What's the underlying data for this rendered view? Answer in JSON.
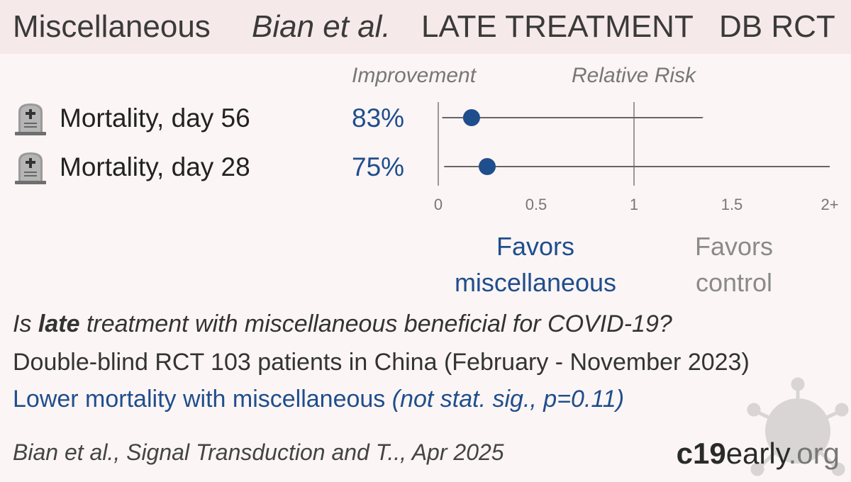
{
  "header": {
    "treatment": "Miscellaneous",
    "authors": "Bian et al.",
    "stage": "LATE TREATMENT",
    "design": "DB RCT"
  },
  "columns": {
    "improvement": "Improvement",
    "relative_risk": "Relative Risk"
  },
  "outcomes": [
    {
      "icon": "tombstone-icon",
      "name": "Mortality, day 56",
      "improvement": "83%"
    },
    {
      "icon": "tombstone-icon",
      "name": "Mortality, day 28",
      "improvement": "75%"
    }
  ],
  "favors": {
    "treatment": [
      "Favors",
      "miscellaneous"
    ],
    "control": [
      "Favors",
      "control"
    ]
  },
  "question": {
    "pre": "Is ",
    "bold": "late",
    "post": " treatment with miscellaneous beneficial for COVID-19?"
  },
  "detail": "Double-blind RCT 103 patients in China (February - November 2023)",
  "result": {
    "main": "Lower mortality with miscellaneous ",
    "note": "(not stat. sig., p=0.11)"
  },
  "citation": "Bian et al., Signal Transduction and T.., Apr 2025",
  "brand": {
    "bold": "c19",
    "rest": "early",
    "tld": ".org"
  },
  "colors": {
    "accent": "#1f4e8c",
    "line": "#666666",
    "header_bg": "#f6e9e9",
    "bg": "#fcf5f5"
  },
  "chart_data": {
    "type": "scatter",
    "xlabel": "Relative Risk",
    "xlim": [
      0,
      2
    ],
    "xticks": [
      "0",
      "0.5",
      "1",
      "1.5",
      "2+"
    ],
    "reference_line": 1,
    "series": [
      {
        "name": "Mortality, day 56",
        "rr": 0.17,
        "ci_low": 0.02,
        "ci_high": 1.35,
        "ci_high_truncated": false
      },
      {
        "name": "Mortality, day 28",
        "rr": 0.25,
        "ci_low": 0.03,
        "ci_high": 2.0,
        "ci_high_truncated": true
      }
    ]
  }
}
